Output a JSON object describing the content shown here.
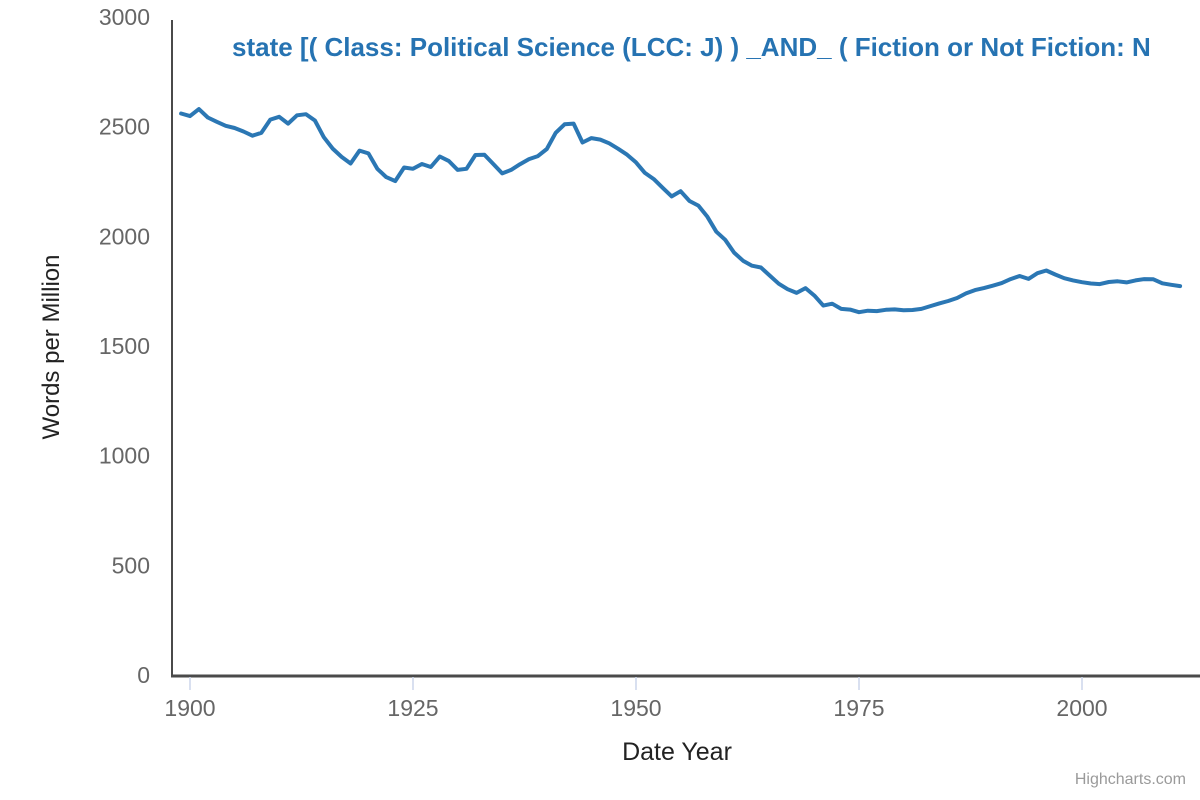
{
  "chart": {
    "credits_label": "Highcharts.com",
    "background_color": "#ffffff",
    "axis_line_color": "#4a4a4a",
    "tick_mark_color": "#ccd6eb",
    "tick_label_color": "#666666",
    "title_color": "#2673b2",
    "series_color": "#2b77b4"
  },
  "chart_data": {
    "type": "line",
    "title": "state [( Class: Political Science (LCC: J) ) _AND_ ( Fiction or Not Fiction: N",
    "xlabel": "Date Year",
    "ylabel": "Words per Million",
    "xlim": [
      1898,
      2013
    ],
    "ylim": [
      0,
      3000
    ],
    "x_ticks": [
      1900,
      1925,
      1950,
      1975,
      2000
    ],
    "y_ticks": [
      0,
      500,
      1000,
      1500,
      2000,
      2500,
      3000
    ],
    "grid": false,
    "legend": false,
    "series": [
      {
        "name": "state",
        "x": [
          1899,
          1900,
          1901,
          1902,
          1903,
          1904,
          1905,
          1906,
          1907,
          1908,
          1909,
          1910,
          1911,
          1912,
          1913,
          1914,
          1915,
          1916,
          1917,
          1918,
          1919,
          1920,
          1921,
          1922,
          1923,
          1924,
          1925,
          1926,
          1927,
          1928,
          1929,
          1930,
          1931,
          1932,
          1933,
          1934,
          1935,
          1936,
          1937,
          1938,
          1939,
          1940,
          1941,
          1942,
          1943,
          1944,
          1945,
          1946,
          1947,
          1948,
          1949,
          1950,
          1951,
          1952,
          1953,
          1954,
          1955,
          1956,
          1957,
          1958,
          1959,
          1960,
          1961,
          1962,
          1963,
          1964,
          1965,
          1966,
          1967,
          1968,
          1969,
          1970,
          1971,
          1972,
          1973,
          1974,
          1975,
          1976,
          1977,
          1978,
          1979,
          1980,
          1981,
          1982,
          1983,
          1984,
          1985,
          1986,
          1987,
          1988,
          1989,
          1990,
          1991,
          1992,
          1993,
          1994,
          1995,
          1996,
          1997,
          1998,
          1999,
          2000,
          2001,
          2002,
          2003,
          2004,
          2005,
          2006,
          2007,
          2008,
          2009,
          2010,
          2011
        ],
        "values": [
          2560,
          2548,
          2580,
          2542,
          2522,
          2504,
          2494,
          2478,
          2459,
          2472,
          2532,
          2545,
          2514,
          2552,
          2557,
          2528,
          2452,
          2400,
          2362,
          2332,
          2391,
          2378,
          2308,
          2270,
          2252,
          2314,
          2308,
          2330,
          2316,
          2364,
          2344,
          2303,
          2308,
          2371,
          2372,
          2330,
          2287,
          2303,
          2329,
          2352,
          2366,
          2398,
          2472,
          2511,
          2514,
          2428,
          2448,
          2441,
          2424,
          2399,
          2372,
          2337,
          2289,
          2261,
          2221,
          2182,
          2206,
          2161,
          2140,
          2089,
          2021,
          1984,
          1926,
          1889,
          1866,
          1858,
          1821,
          1784,
          1759,
          1742,
          1764,
          1730,
          1684,
          1693,
          1669,
          1666,
          1654,
          1661,
          1659,
          1665,
          1667,
          1663,
          1664,
          1669,
          1682,
          1694,
          1705,
          1719,
          1740,
          1755,
          1764,
          1775,
          1787,
          1805,
          1819,
          1806,
          1832,
          1844,
          1826,
          1809,
          1799,
          1791,
          1785,
          1782,
          1792,
          1795,
          1790,
          1799,
          1805,
          1804,
          1786,
          1779,
          1773
        ]
      }
    ]
  }
}
